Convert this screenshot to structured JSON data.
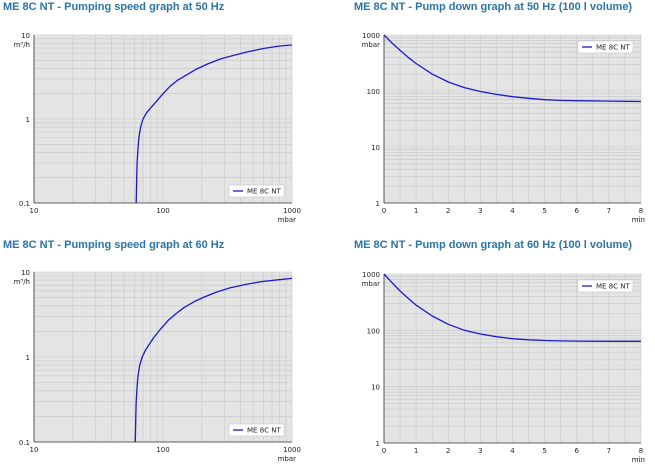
{
  "colors": {
    "title": "#2a74a8",
    "line": "#1a1ad0",
    "plot_bg": "#e4e4e4",
    "grid": "#c8c8c8"
  },
  "chart_data": [
    {
      "type": "line",
      "title": "ME 8C NT - Pumping speed graph at 50 Hz",
      "xlabel": "mbar",
      "ylabel": "m³/h",
      "xscale": "log",
      "yscale": "log",
      "xlim": [
        10,
        1000
      ],
      "ylim": [
        0.1,
        10
      ],
      "xticks": [
        "10",
        "100",
        "1000"
      ],
      "yticks": [
        "0.1",
        "1",
        "10"
      ],
      "grid": true,
      "legend": "bottom-right",
      "series": [
        {
          "name": "ME 8C NT",
          "x": [
            62,
            62.5,
            63,
            64,
            65,
            67,
            70,
            75,
            80,
            90,
            100,
            115,
            130,
            150,
            180,
            220,
            280,
            350,
            450,
            600,
            800,
            1000
          ],
          "y": [
            0.1,
            0.2,
            0.3,
            0.45,
            0.6,
            0.8,
            1.0,
            1.2,
            1.35,
            1.65,
            2.0,
            2.5,
            2.9,
            3.3,
            3.9,
            4.5,
            5.2,
            5.7,
            6.3,
            6.9,
            7.4,
            7.6
          ]
        }
      ]
    },
    {
      "type": "line",
      "title": "ME 8C NT - Pump down graph at 50 Hz (100 l volume)",
      "xlabel": "min",
      "ylabel": "mbar",
      "xscale": "linear",
      "yscale": "log",
      "xlim": [
        0,
        8
      ],
      "ylim": [
        1,
        1000
      ],
      "xticks": [
        "0",
        "1",
        "2",
        "3",
        "4",
        "5",
        "6",
        "7",
        "8"
      ],
      "yticks": [
        "1",
        "10",
        "100",
        "1000"
      ],
      "grid": true,
      "legend": "top-right",
      "series": [
        {
          "name": "ME 8C NT",
          "x": [
            0,
            0.25,
            0.5,
            0.75,
            1,
            1.5,
            2,
            2.5,
            3,
            3.5,
            4,
            4.5,
            5,
            5.5,
            6,
            7,
            8
          ],
          "y": [
            1000,
            720,
            530,
            400,
            310,
            200,
            145,
            115,
            98,
            87,
            79,
            74,
            70,
            68,
            67,
            66,
            65
          ]
        }
      ]
    },
    {
      "type": "line",
      "title": "ME 8C NT - Pumping speed graph at 60 Hz",
      "xlabel": "mbar",
      "ylabel": "m³/h",
      "xscale": "log",
      "yscale": "log",
      "xlim": [
        10,
        1000
      ],
      "ylim": [
        0.1,
        10
      ],
      "xticks": [
        "10",
        "100",
        "1000"
      ],
      "yticks": [
        "0.1",
        "1",
        "10"
      ],
      "grid": true,
      "legend": "bottom-right",
      "series": [
        {
          "name": "ME 8C NT",
          "x": [
            61,
            61.5,
            62,
            63,
            64,
            66,
            69,
            73,
            78,
            85,
            95,
            110,
            125,
            145,
            175,
            210,
            260,
            330,
            430,
            580,
            780,
            1000
          ],
          "y": [
            0.1,
            0.2,
            0.3,
            0.45,
            0.6,
            0.8,
            1.0,
            1.2,
            1.4,
            1.7,
            2.1,
            2.7,
            3.2,
            3.8,
            4.5,
            5.1,
            5.8,
            6.5,
            7.1,
            7.7,
            8.1,
            8.4
          ]
        }
      ]
    },
    {
      "type": "line",
      "title": "ME 8C NT - Pump down graph at 60 Hz (100 l volume)",
      "xlabel": "min",
      "ylabel": "mbar",
      "xscale": "linear",
      "yscale": "log",
      "xlim": [
        0,
        8
      ],
      "ylim": [
        1,
        1000
      ],
      "xticks": [
        "0",
        "1",
        "2",
        "3",
        "4",
        "5",
        "6",
        "7",
        "8"
      ],
      "yticks": [
        "1",
        "10",
        "100",
        "1000"
      ],
      "grid": true,
      "legend": "top-right",
      "series": [
        {
          "name": "ME 8C NT",
          "x": [
            0,
            0.25,
            0.5,
            0.75,
            1,
            1.5,
            2,
            2.5,
            3,
            3.5,
            4,
            4.5,
            5,
            5.5,
            6,
            7,
            8
          ],
          "y": [
            1000,
            700,
            500,
            370,
            280,
            180,
            128,
            100,
            86,
            77,
            71,
            68,
            66,
            65,
            64.5,
            64,
            64
          ]
        }
      ]
    }
  ]
}
